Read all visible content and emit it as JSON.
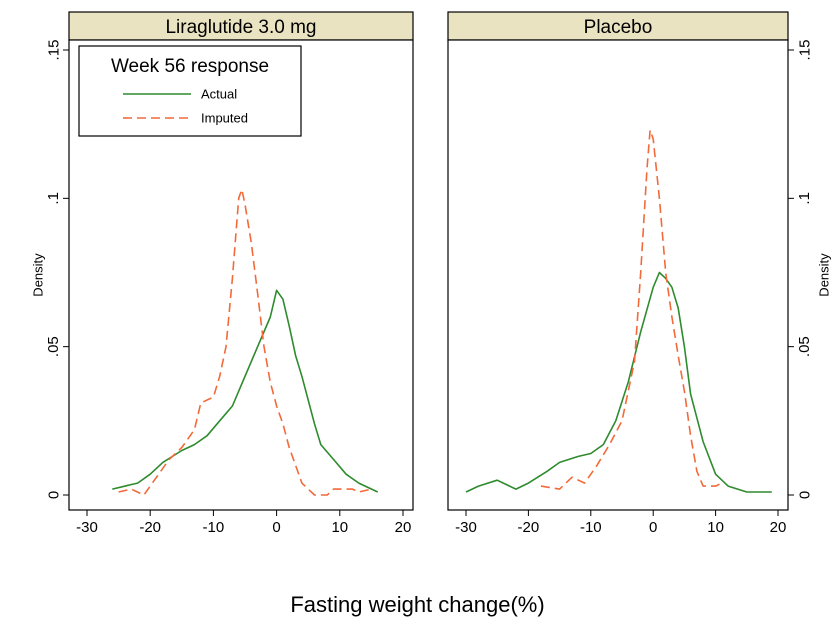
{
  "chart_data": {
    "type": "line",
    "xlabel": "Fasting weight change(%)",
    "ylabel": "Density",
    "xlim": [
      -30,
      20
    ],
    "ylim": [
      0,
      0.15
    ],
    "x_ticks": [
      -30,
      -20,
      -10,
      0,
      10,
      20
    ],
    "x_tick_labels": [
      "-30",
      "-20",
      "-10",
      "0",
      "10",
      "20"
    ],
    "y_ticks": [
      0,
      0.05,
      0.1,
      0.15
    ],
    "y_tick_labels": [
      "0",
      ".05",
      ".1",
      ".15"
    ],
    "legend": {
      "title": "Week 56 response",
      "placement": "top-left of left panel",
      "entries": [
        {
          "label": "Actual",
          "color": "#2e8b2e",
          "style": "solid"
        },
        {
          "label": "Imputed",
          "color": "#f26a3a",
          "style": "dashed"
        }
      ]
    },
    "panels": [
      {
        "title": "Liraglutide 3.0 mg",
        "series": [
          {
            "name": "Actual",
            "color": "#2e8b2e",
            "style": "solid",
            "points": [
              [
                -26,
                0.002
              ],
              [
                -22,
                0.004
              ],
              [
                -20,
                0.007
              ],
              [
                -18,
                0.011
              ],
              [
                -15,
                0.015
              ],
              [
                -13,
                0.017
              ],
              [
                -11,
                0.02
              ],
              [
                -9,
                0.025
              ],
              [
                -7,
                0.03
              ],
              [
                -5,
                0.04
              ],
              [
                -3,
                0.05
              ],
              [
                -1,
                0.06
              ],
              [
                0,
                0.069
              ],
              [
                1,
                0.066
              ],
              [
                2,
                0.057
              ],
              [
                3,
                0.047
              ],
              [
                4,
                0.04
              ],
              [
                5,
                0.032
              ],
              [
                6,
                0.024
              ],
              [
                7,
                0.017
              ],
              [
                9,
                0.012
              ],
              [
                11,
                0.007
              ],
              [
                13,
                0.004
              ],
              [
                16,
                0.001
              ]
            ]
          },
          {
            "name": "Imputed",
            "color": "#f26a3a",
            "style": "dashed",
            "points": [
              [
                -25,
                0.001
              ],
              [
                -23,
                0.002
              ],
              [
                -21,
                0.0
              ],
              [
                -19,
                0.006
              ],
              [
                -17,
                0.012
              ],
              [
                -15,
                0.016
              ],
              [
                -13,
                0.022
              ],
              [
                -12,
                0.031
              ],
              [
                -10,
                0.033
              ],
              [
                -9,
                0.04
              ],
              [
                -8,
                0.05
              ],
              [
                -7,
                0.073
              ],
              [
                -6,
                0.1
              ],
              [
                -5.5,
                0.103
              ],
              [
                -5,
                0.098
              ],
              [
                -4,
                0.085
              ],
              [
                -3,
                0.068
              ],
              [
                -2,
                0.05
              ],
              [
                -1,
                0.038
              ],
              [
                0,
                0.03
              ],
              [
                1,
                0.024
              ],
              [
                2,
                0.016
              ],
              [
                3,
                0.01
              ],
              [
                4,
                0.004
              ],
              [
                5,
                0.002
              ],
              [
                6,
                0.0
              ],
              [
                8,
                0.0
              ],
              [
                9,
                0.002
              ],
              [
                12,
                0.002
              ],
              [
                13,
                0.001
              ],
              [
                15,
                0.002
              ]
            ]
          }
        ]
      },
      {
        "title": "Placebo",
        "series": [
          {
            "name": "Actual",
            "color": "#2e8b2e",
            "style": "solid",
            "points": [
              [
                -30,
                0.001
              ],
              [
                -28,
                0.003
              ],
              [
                -25,
                0.005
              ],
              [
                -22,
                0.002
              ],
              [
                -20,
                0.004
              ],
              [
                -17,
                0.008
              ],
              [
                -15,
                0.011
              ],
              [
                -12,
                0.013
              ],
              [
                -10,
                0.014
              ],
              [
                -8,
                0.017
              ],
              [
                -6,
                0.025
              ],
              [
                -4,
                0.038
              ],
              [
                -2,
                0.055
              ],
              [
                0,
                0.07
              ],
              [
                1,
                0.075
              ],
              [
                2,
                0.073
              ],
              [
                3,
                0.07
              ],
              [
                4,
                0.063
              ],
              [
                5,
                0.05
              ],
              [
                6,
                0.034
              ],
              [
                8,
                0.018
              ],
              [
                10,
                0.007
              ],
              [
                12,
                0.003
              ],
              [
                15,
                0.001
              ],
              [
                18,
                0.001
              ],
              [
                19,
                0.001
              ]
            ]
          },
          {
            "name": "Imputed",
            "color": "#f26a3a",
            "style": "dashed",
            "points": [
              [
                -18,
                0.003
              ],
              [
                -15,
                0.002
              ],
              [
                -13,
                0.006
              ],
              [
                -11,
                0.004
              ],
              [
                -9,
                0.01
              ],
              [
                -7,
                0.017
              ],
              [
                -5,
                0.025
              ],
              [
                -3,
                0.045
              ],
              [
                -2,
                0.075
              ],
              [
                -1,
                0.11
              ],
              [
                -0.5,
                0.123
              ],
              [
                0,
                0.12
              ],
              [
                1,
                0.1
              ],
              [
                2,
                0.075
              ],
              [
                3,
                0.06
              ],
              [
                4,
                0.047
              ],
              [
                5,
                0.035
              ],
              [
                6,
                0.02
              ],
              [
                7,
                0.008
              ],
              [
                8,
                0.003
              ],
              [
                9,
                0.003
              ],
              [
                10,
                0.003
              ],
              [
                11,
                0.004
              ]
            ]
          }
        ]
      }
    ]
  }
}
